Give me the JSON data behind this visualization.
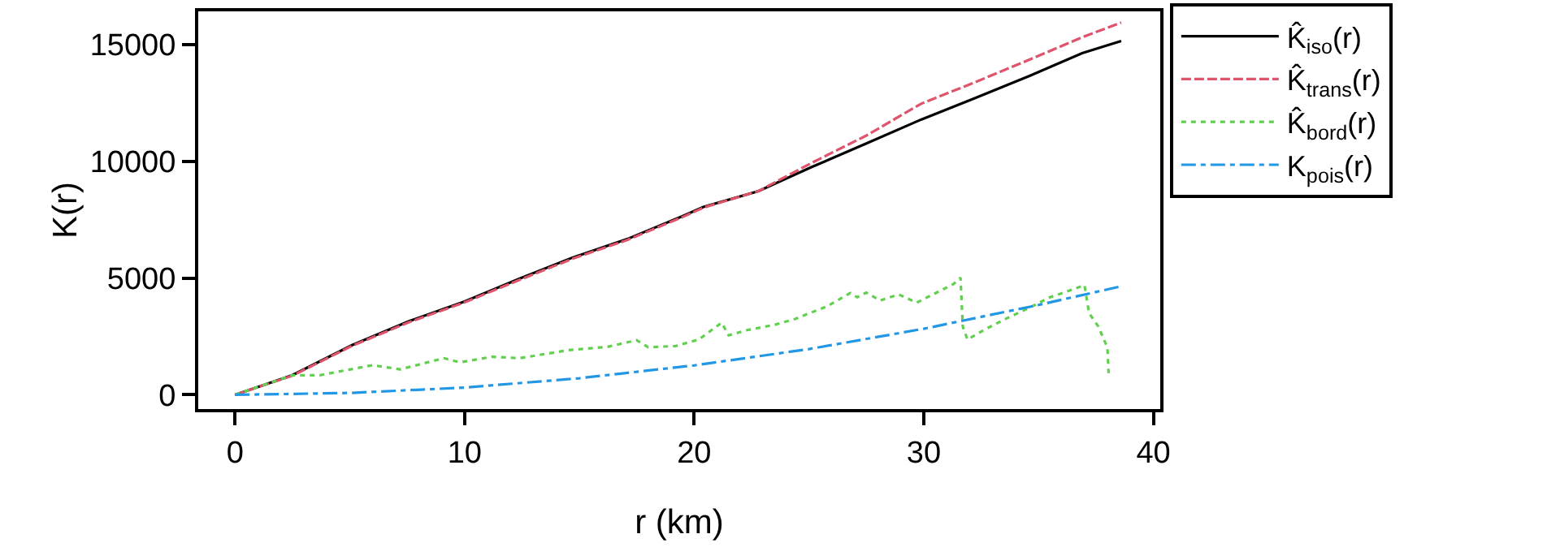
{
  "chart_data": {
    "type": "line",
    "xlabel": "r (km)",
    "ylabel": "K(r)",
    "xlim": [
      -1.6,
      40.3
    ],
    "ylim": [
      -610,
      16430
    ],
    "xticks": [
      0,
      10,
      20,
      30,
      40
    ],
    "yticks": [
      0,
      5000,
      10000,
      15000
    ],
    "legend": "top right",
    "marker": "none",
    "series": [
      {
        "name": "K̂$_{iso}$(r)",
        "color": "#000000",
        "line_style": "solid",
        "x": [
          0,
          2.5,
          5.1,
          7.6,
          10,
          12.4,
          14.7,
          17.1,
          19.5,
          20.4,
          22.8,
          25.1,
          27.5,
          29.9,
          32.2,
          34.5,
          36.9,
          38.6
        ],
        "values": [
          0,
          840,
          2130,
          3160,
          4000,
          4980,
          5880,
          6680,
          7660,
          8050,
          8730,
          9750,
          10770,
          11800,
          12700,
          13620,
          14640,
          15160
        ]
      },
      {
        "name": "K̂$_{trans}$(r)",
        "color": "#df536b",
        "line_style": "dashed",
        "x": [
          0,
          2.5,
          5.1,
          7.6,
          10,
          12.4,
          14.7,
          17.1,
          19.5,
          20.4,
          22.8,
          25.1,
          27.5,
          29.9,
          32.2,
          34.6,
          36.9,
          38.6
        ],
        "values": [
          0,
          820,
          2100,
          3120,
          3960,
          4930,
          5830,
          6640,
          7620,
          8020,
          8730,
          9930,
          11110,
          12480,
          13380,
          14360,
          15320,
          15950
        ]
      },
      {
        "name": "K̂$_{bord}$(r)",
        "color": "#61d04f",
        "line_style": "dotted",
        "x": [
          0,
          2.5,
          3.7,
          6,
          7.2,
          9.1,
          9.8,
          11.2,
          12.4,
          14.5,
          16.2,
          17.5,
          18,
          19.2,
          20.2,
          21.2,
          21.5,
          22.3,
          23.5,
          24.4,
          25.8,
          26.8,
          27.1,
          27.5,
          28.1,
          28.9,
          29.7,
          30.3,
          31.3,
          31.6,
          31.7,
          31.9,
          32.7,
          33.6,
          34.6,
          35.5,
          36.5,
          37.0,
          37.2,
          37.6,
          38.0,
          38.05
        ],
        "values": [
          0,
          840,
          840,
          1270,
          1090,
          1570,
          1390,
          1630,
          1570,
          1910,
          2050,
          2340,
          2040,
          2090,
          2370,
          3090,
          2550,
          2770,
          3000,
          3250,
          3800,
          4360,
          4180,
          4380,
          4040,
          4300,
          3950,
          4250,
          4750,
          5020,
          2930,
          2370,
          2820,
          3270,
          3730,
          4180,
          4520,
          4700,
          3500,
          2930,
          2020,
          930
        ]
      },
      {
        "name": "K$_{pois}$(r)",
        "color": "#2297e6",
        "line_style": "dashdot",
        "x": [
          0,
          5,
          10,
          15,
          20,
          25,
          30,
          35,
          38.6
        ],
        "values": [
          0,
          80,
          310,
          710,
          1260,
          1960,
          2830,
          3850,
          4650
        ]
      }
    ]
  }
}
